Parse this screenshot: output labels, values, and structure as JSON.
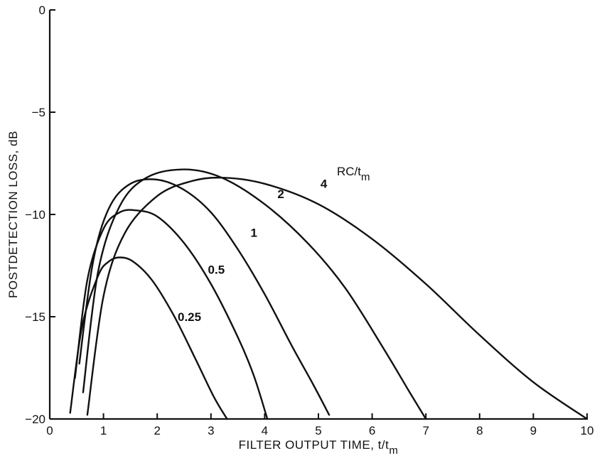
{
  "chart_data": {
    "type": "line",
    "xlabel": "FILTER OUTPUT TIME, t/t",
    "xlabel_sub": "m",
    "ylabel": "POSTDETECTION LOSS, dB",
    "xlim": [
      0,
      10
    ],
    "ylim": [
      -20,
      0
    ],
    "x_ticks": [
      "0",
      "1",
      "2",
      "3",
      "4",
      "5",
      "6",
      "7",
      "8",
      "9",
      "10"
    ],
    "y_ticks": [
      "0",
      "-5",
      "-10",
      "-15",
      "-20"
    ],
    "y_tick_values": [
      0,
      -5,
      -10,
      -15,
      -20
    ],
    "legend_title": "RC/t",
    "legend_title_sub": "m",
    "grid": false,
    "series": [
      {
        "name": "0.25",
        "x": [
          0.38,
          0.6,
          0.9,
          1.1,
          1.3,
          1.55,
          1.9,
          2.3,
          2.7,
          3.05,
          3.3
        ],
        "y": [
          -19.7,
          -15.5,
          -13.0,
          -12.3,
          -12.1,
          -12.3,
          -13.2,
          -14.9,
          -17.0,
          -18.9,
          -20.0
        ]
      },
      {
        "name": "0.5",
        "x": [
          0.47,
          0.7,
          1.0,
          1.3,
          1.6,
          2.0,
          2.5,
          3.0,
          3.5,
          3.8,
          4.05
        ],
        "y": [
          -18.0,
          -13.2,
          -10.7,
          -9.9,
          -9.8,
          -10.1,
          -11.4,
          -13.4,
          -16.0,
          -17.9,
          -20.0
        ]
      },
      {
        "name": "1",
        "x": [
          0.55,
          0.8,
          1.1,
          1.5,
          2.0,
          2.5,
          3.0,
          3.5,
          4.0,
          4.5,
          4.9,
          5.2
        ],
        "y": [
          -17.3,
          -12.4,
          -9.7,
          -8.5,
          -8.3,
          -8.8,
          -9.9,
          -11.7,
          -13.9,
          -16.4,
          -18.3,
          -19.8
        ]
      },
      {
        "name": "2",
        "x": [
          0.62,
          0.9,
          1.3,
          1.8,
          2.5,
          3.2,
          4.0,
          4.8,
          5.5,
          6.2,
          6.7,
          7.0
        ],
        "y": [
          -18.7,
          -12.8,
          -9.6,
          -8.2,
          -7.8,
          -8.2,
          -9.5,
          -11.4,
          -13.6,
          -16.5,
          -18.7,
          -20.0
        ]
      },
      {
        "name": "4",
        "x": [
          0.7,
          1.0,
          1.4,
          2.0,
          2.6,
          3.2,
          4.0,
          5.0,
          6.0,
          7.0,
          8.0,
          9.0,
          10.0
        ],
        "y": [
          -19.8,
          -14.0,
          -10.9,
          -9.1,
          -8.4,
          -8.2,
          -8.5,
          -9.5,
          -11.2,
          -13.4,
          -15.9,
          -18.2,
          -20.0
        ]
      }
    ]
  }
}
